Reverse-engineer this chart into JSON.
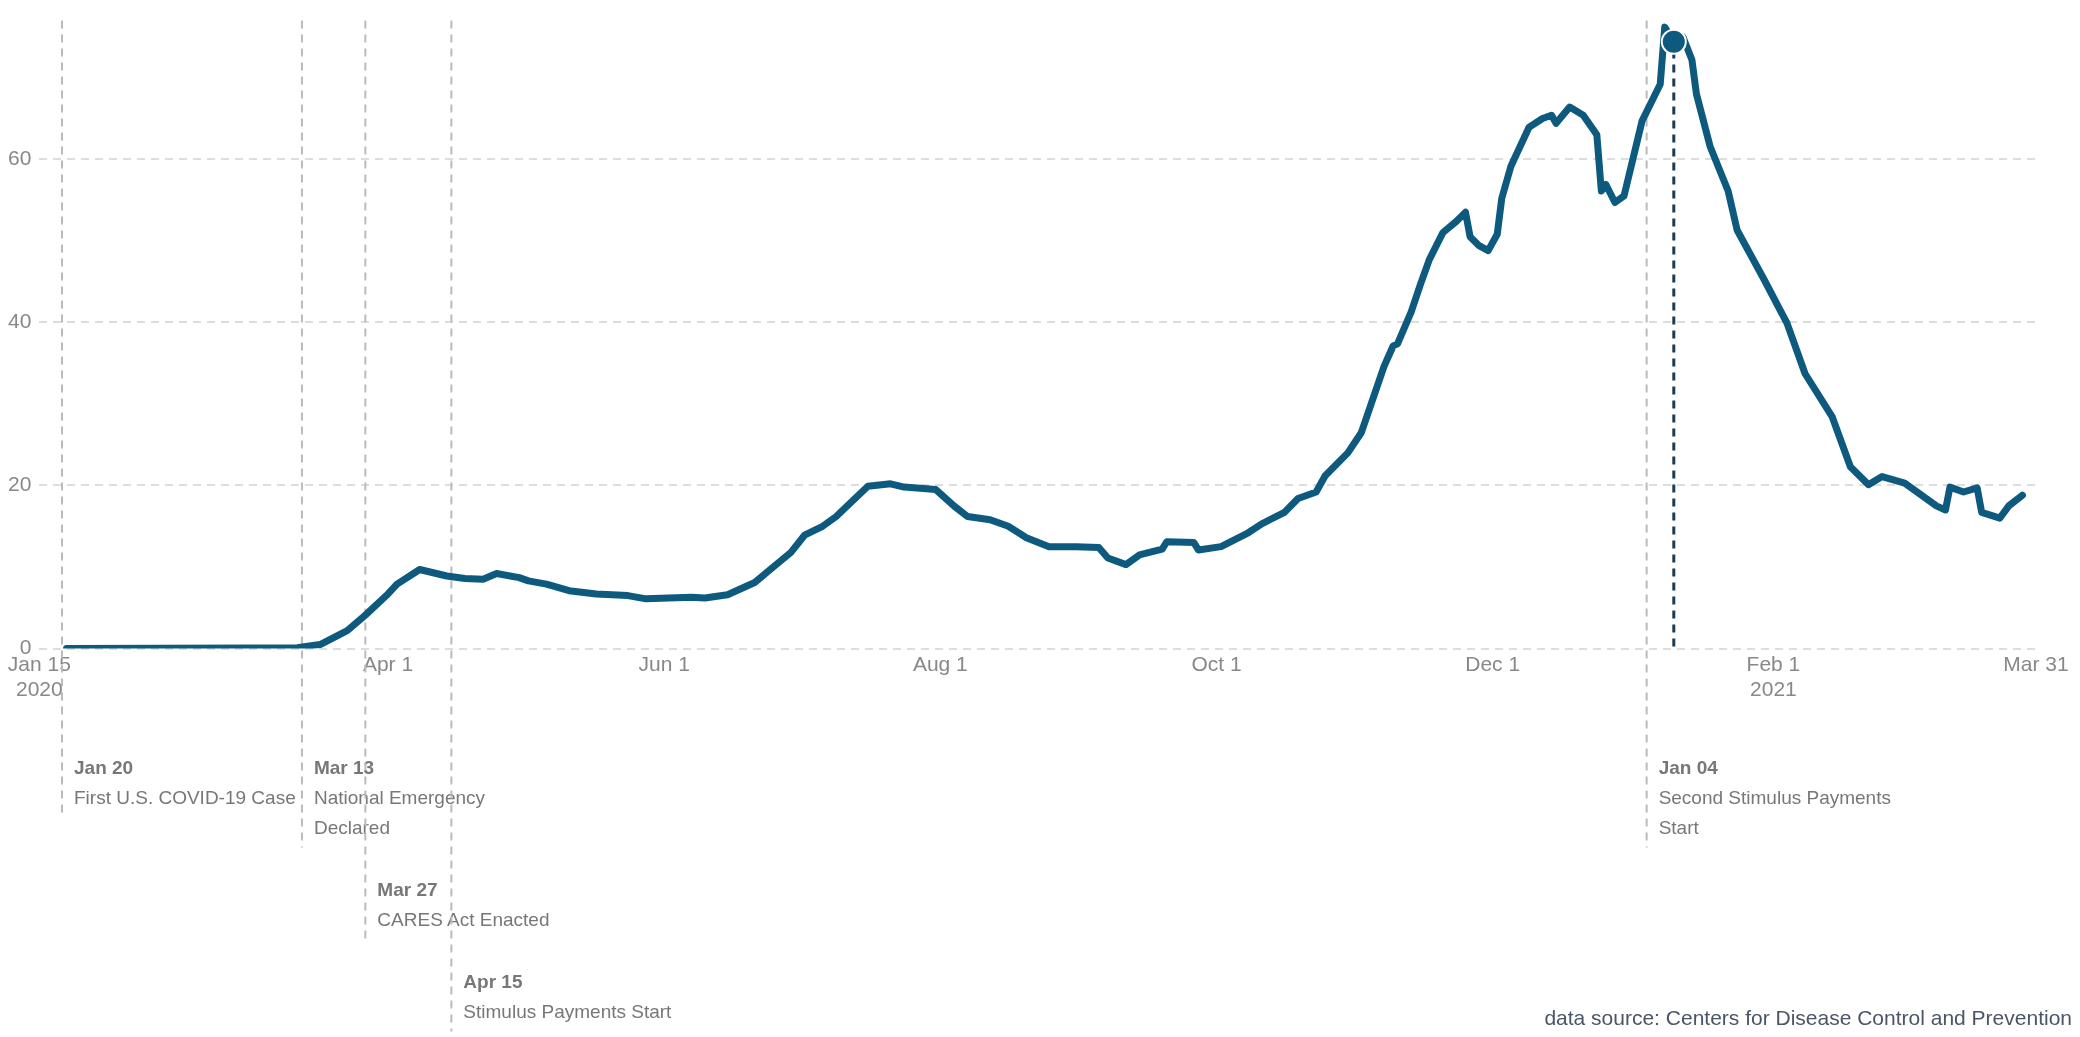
{
  "chart_data": {
    "type": "line",
    "xlim": [
      "2020-01-15",
      "2021-03-31"
    ],
    "xticks": [
      {
        "value": "2020-01-15",
        "label": "Jan 15\n2020"
      },
      {
        "value": "2020-04-01",
        "label": "Apr 1"
      },
      {
        "value": "2020-06-01",
        "label": "Jun 1"
      },
      {
        "value": "2020-08-01",
        "label": "Aug 1"
      },
      {
        "value": "2020-10-01",
        "label": "Oct 1"
      },
      {
        "value": "2020-12-01",
        "label": "Dec 1"
      },
      {
        "value": "2021-02-01",
        "label": "Feb 1\n2021"
      },
      {
        "value": "2021-03-31",
        "label": "Mar 31"
      }
    ],
    "ylim": [
      0,
      77
    ],
    "yticks": [
      0,
      20,
      40,
      60
    ],
    "grid": "y",
    "legend": false,
    "series": [
      {
        "color": "#0e5a7e",
        "x": [
          "2020-01-21",
          "2020-03-12",
          "2020-03-17",
          "2020-03-23",
          "2020-03-27",
          "2020-04-01",
          "2020-04-03",
          "2020-04-08",
          "2020-04-11",
          "2020-04-14",
          "2020-04-18",
          "2020-04-22",
          "2020-04-25",
          "2020-04-30",
          "2020-05-02",
          "2020-05-06",
          "2020-05-11",
          "2020-05-17",
          "2020-05-24",
          "2020-05-28",
          "2020-06-07",
          "2020-06-10",
          "2020-06-15",
          "2020-06-21",
          "2020-06-24",
          "2020-06-29",
          "2020-07-02",
          "2020-07-06",
          "2020-07-09",
          "2020-07-12",
          "2020-07-16",
          "2020-07-21",
          "2020-07-24",
          "2020-07-31",
          "2020-08-04",
          "2020-08-07",
          "2020-08-12",
          "2020-08-16",
          "2020-08-20",
          "2020-08-25",
          "2020-08-31",
          "2020-09-05",
          "2020-09-07",
          "2020-09-11",
          "2020-09-14",
          "2020-09-19",
          "2020-09-20",
          "2020-09-26",
          "2020-09-27",
          "2020-10-02",
          "2020-10-08",
          "2020-10-11",
          "2020-10-16",
          "2020-10-19",
          "2020-10-23",
          "2020-10-25",
          "2020-10-30",
          "2020-11-02",
          "2020-11-07",
          "2020-11-09",
          "2020-11-10",
          "2020-11-13",
          "2020-11-15",
          "2020-11-17",
          "2020-11-20",
          "2020-11-23",
          "2020-11-25",
          "2020-11-26",
          "2020-11-28",
          "2020-11-30",
          "2020-12-02",
          "2020-12-03",
          "2020-12-05",
          "2020-12-09",
          "2020-12-12",
          "2020-12-14",
          "2020-12-15",
          "2020-12-18",
          "2020-12-21",
          "2020-12-24",
          "2020-12-25",
          "2020-12-26",
          "2020-12-28",
          "2020-12-30",
          "2021-01-03",
          "2021-01-07",
          "2021-01-08",
          "2021-01-10",
          "2021-01-12",
          "2021-01-14",
          "2021-01-15",
          "2021-01-18",
          "2021-01-22",
          "2021-01-24",
          "2021-01-30",
          "2021-02-04",
          "2021-02-08",
          "2021-02-14",
          "2021-02-18",
          "2021-02-22",
          "2021-02-25",
          "2021-03-02",
          "2021-03-09",
          "2021-03-11",
          "2021-03-12",
          "2021-03-15",
          "2021-03-18",
          "2021-03-19",
          "2021-03-23",
          "2021-03-25",
          "2021-03-28"
        ],
        "values": [
          0,
          0.1,
          0.5,
          2.2,
          4.1,
          6.7,
          7.9,
          9.7,
          9.3,
          8.9,
          8.6,
          8.5,
          9.2,
          8.7,
          8.3,
          7.9,
          7.1,
          6.7,
          6.5,
          6.1,
          6.3,
          6.2,
          6.6,
          8.1,
          9.5,
          11.8,
          13.9,
          15.0,
          16.2,
          17.8,
          19.9,
          20.2,
          19.8,
          19.5,
          17.5,
          16.2,
          15.8,
          15.0,
          13.6,
          12.5,
          12.5,
          12.4,
          11.1,
          10.3,
          11.5,
          12.2,
          13.1,
          13.0,
          12.1,
          12.5,
          14.2,
          15.3,
          16.7,
          18.4,
          19.2,
          21.2,
          24.0,
          26.5,
          34.6,
          37.1,
          37.4,
          41.3,
          44.6,
          47.7,
          51.0,
          52.4,
          53.5,
          50.5,
          49.4,
          48.8,
          50.8,
          55.2,
          59.1,
          63.9,
          65.0,
          65.4,
          64.4,
          66.4,
          65.4,
          63.0,
          56.1,
          56.9,
          54.7,
          55.5,
          64.7,
          69.2,
          76.2,
          74.4,
          75.0,
          72.2,
          68.0,
          61.6,
          56.1,
          51.3,
          45.2,
          39.9,
          33.7,
          28.4,
          22.3,
          20.1,
          21.1,
          20.3,
          17.5,
          17.0,
          19.8,
          19.2,
          19.7,
          16.7,
          16.0,
          17.5,
          18.8
        ]
      },
      {
        "type": "scatter",
        "color": "#0e5a7e",
        "x": [
          "2021-01-10"
        ],
        "values": [
          74.4
        ],
        "marker": "circle"
      }
    ],
    "ref_lines": [
      {
        "axis": "x",
        "value": "2020-01-20",
        "label": "Jan 20\nFirst U.S. COVID-19 Case",
        "color": "#bbbbbb",
        "line_style": "dashed"
      },
      {
        "axis": "x",
        "value": "2020-03-13",
        "label": "Mar 13\nNational Emergency Declared",
        "color": "#bbbbbb",
        "line_style": "dashed"
      },
      {
        "axis": "x",
        "value": "2020-03-27",
        "label": "Mar 27\nCARES Act Enacted",
        "color": "#bbbbbb",
        "line_style": "dashed"
      },
      {
        "axis": "x",
        "value": "2020-04-15",
        "label": "Apr 15\nStimulus Payments Start",
        "color": "#bbbbbb",
        "line_style": "dashed"
      },
      {
        "axis": "x",
        "value": "2021-01-04",
        "label": "Jan 04\nSecond Stimulus Payments Start",
        "color": "#bbbbbb",
        "line_style": "dashed"
      },
      {
        "axis": "x",
        "value": "2021-01-10",
        "color": "#1d3b52",
        "line_style": "dashed"
      }
    ],
    "annotations": [
      "data source: Centers for Disease Control and Prevention"
    ]
  }
}
